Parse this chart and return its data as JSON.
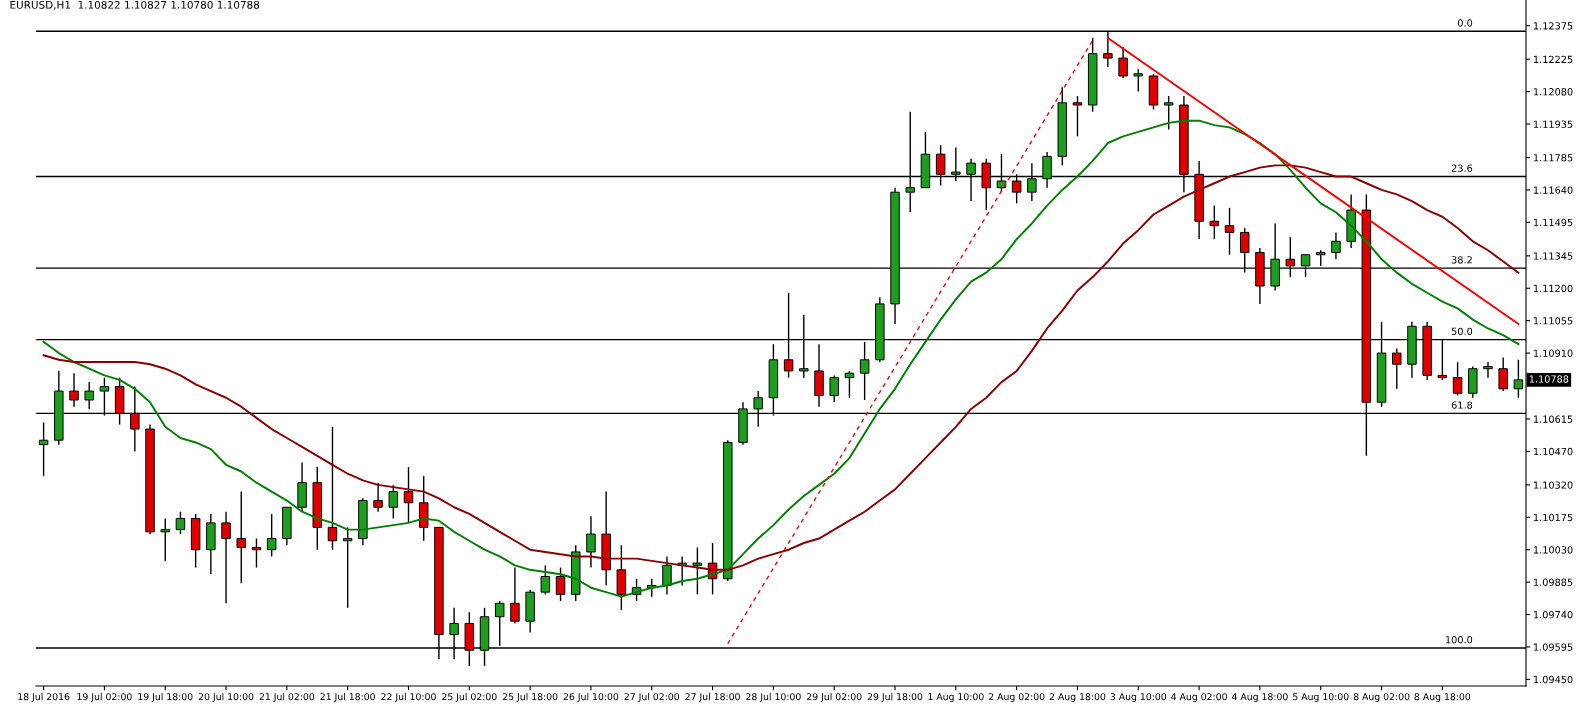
{
  "chart_data": {
    "type": "candlestick",
    "title": "EURUSD,H1  1.10822 1.10827 1.10780 1.10788",
    "categories": [
      "18 Jul 2016",
      null,
      null,
      null,
      "19 Jul 02:00",
      null,
      null,
      null,
      "19 Jul 18:00",
      null,
      null,
      null,
      "20 Jul 10:00",
      null,
      null,
      null,
      "21 Jul 02:00",
      null,
      null,
      null,
      "21 Jul 18:00",
      null,
      null,
      null,
      "22 Jul 10:00",
      null,
      null,
      null,
      "25 Jul 02:00",
      null,
      null,
      null,
      "25 Jul 18:00",
      null,
      null,
      null,
      "26 Jul 10:00",
      null,
      null,
      null,
      "27 Jul 02:00",
      null,
      null,
      null,
      "27 Jul 18:00",
      null,
      null,
      null,
      "28 Jul 10:00",
      null,
      null,
      null,
      "29 Jul 02:00",
      null,
      null,
      null,
      "29 Jul 18:00",
      null,
      null,
      null,
      "1 Aug 10:00",
      null,
      null,
      null,
      "2 Aug 02:00",
      null,
      null,
      null,
      "2 Aug 18:00",
      null,
      null,
      null,
      "3 Aug 10:00",
      null,
      null,
      null,
      "4 Aug 02:00",
      null,
      null,
      null,
      "4 Aug 18:00",
      null,
      null,
      null,
      "5 Aug 10:00",
      null,
      null,
      null,
      "8 Aug 02:00",
      null,
      null,
      null,
      "8 Aug 18:00",
      null,
      null,
      null,
      null,
      null
    ],
    "ohlc": [
      [
        1.105,
        1.106,
        1.1036,
        1.1052
      ],
      [
        1.1052,
        1.1083,
        1.105,
        1.1074
      ],
      [
        1.1074,
        1.1082,
        1.1067,
        1.107
      ],
      [
        1.107,
        1.1078,
        1.1066,
        1.1074
      ],
      [
        1.1074,
        1.108,
        1.1063,
        1.1076
      ],
      [
        1.1076,
        1.108,
        1.1059,
        1.1064
      ],
      [
        1.1064,
        1.1076,
        1.1047,
        1.1057
      ],
      [
        1.1057,
        1.1059,
        1.101,
        1.1011
      ],
      [
        1.1011,
        1.1017,
        1.0998,
        1.1012
      ],
      [
        1.1012,
        1.102,
        1.101,
        1.1017
      ],
      [
        1.1017,
        1.1019,
        1.0995,
        1.1003
      ],
      [
        1.1003,
        1.1019,
        1.0992,
        1.1015
      ],
      [
        1.1015,
        1.102,
        1.0979,
        1.1008
      ],
      [
        1.1008,
        1.1029,
        1.0988,
        1.1004
      ],
      [
        1.1004,
        1.1008,
        1.0995,
        1.1003
      ],
      [
        1.1003,
        1.1019,
        1.1,
        1.1008
      ],
      [
        1.1008,
        1.1022,
        1.1005,
        1.1022
      ],
      [
        1.1022,
        1.1042,
        1.102,
        1.1033
      ],
      [
        1.1033,
        1.104,
        1.1003,
        1.1013
      ],
      [
        1.1013,
        1.1058,
        1.1003,
        1.1007
      ],
      [
        1.1007,
        1.1013,
        1.0977,
        1.1008
      ],
      [
        1.1008,
        1.1026,
        1.1005,
        1.1025
      ],
      [
        1.1025,
        1.1033,
        1.102,
        1.1022
      ],
      [
        1.1022,
        1.1032,
        1.1017,
        1.1029
      ],
      [
        1.1029,
        1.104,
        1.1015,
        1.1024
      ],
      [
        1.1024,
        1.1036,
        1.1007,
        1.1013
      ],
      [
        1.1013,
        1.1013,
        1.0954,
        1.0965
      ],
      [
        1.0965,
        1.0977,
        1.0954,
        1.097
      ],
      [
        1.097,
        1.0975,
        1.0951,
        1.0958
      ],
      [
        1.0958,
        1.0977,
        1.0951,
        1.0973
      ],
      [
        1.0973,
        1.098,
        1.096,
        1.0979
      ],
      [
        1.0979,
        1.0995,
        1.097,
        1.0971
      ],
      [
        1.0971,
        1.0985,
        1.0966,
        1.0984
      ],
      [
        1.0984,
        1.0996,
        1.0983,
        1.0991
      ],
      [
        1.0991,
        1.0995,
        1.098,
        1.0983
      ],
      [
        1.0983,
        1.1005,
        1.098,
        1.1002
      ],
      [
        1.1002,
        1.1018,
        1.0995,
        1.101
      ],
      [
        1.101,
        1.1029,
        1.0987,
        1.0994
      ],
      [
        1.0994,
        1.1005,
        1.0976,
        1.0983
      ],
      [
        1.0983,
        1.099,
        1.098,
        1.0986
      ],
      [
        1.0986,
        1.099,
        1.0982,
        1.0987
      ],
      [
        1.0987,
        1.1,
        1.0983,
        1.0996
      ],
      [
        1.0996,
        1.1,
        1.0987,
        1.0997
      ],
      [
        1.0996,
        1.1004,
        1.0983,
        1.0997
      ],
      [
        1.0997,
        1.1006,
        1.0983,
        1.099
      ],
      [
        1.099,
        1.1052,
        1.0989,
        1.1051
      ],
      [
        1.1051,
        1.1069,
        1.105,
        1.1066
      ],
      [
        1.1066,
        1.1074,
        1.1058,
        1.1071
      ],
      [
        1.1071,
        1.1095,
        1.1063,
        1.1088
      ],
      [
        1.1088,
        1.1118,
        1.108,
        1.1083
      ],
      [
        1.1083,
        1.1108,
        1.108,
        1.1084
      ],
      [
        1.1083,
        1.1095,
        1.1067,
        1.1072
      ],
      [
        1.1072,
        1.1081,
        1.1069,
        1.108
      ],
      [
        1.108,
        1.1083,
        1.1071,
        1.1082
      ],
      [
        1.1082,
        1.1096,
        1.107,
        1.1088
      ],
      [
        1.1088,
        1.1116,
        1.1087,
        1.1113
      ],
      [
        1.1113,
        1.1165,
        1.1104,
        1.1163
      ],
      [
        1.1163,
        1.1199,
        1.1154,
        1.1165
      ],
      [
        1.1165,
        1.119,
        1.1165,
        1.118
      ],
      [
        1.118,
        1.1184,
        1.1166,
        1.1171
      ],
      [
        1.1171,
        1.1183,
        1.1168,
        1.1172
      ],
      [
        1.1171,
        1.1178,
        1.1159,
        1.1176
      ],
      [
        1.1176,
        1.1178,
        1.1155,
        1.1165
      ],
      [
        1.1165,
        1.118,
        1.1163,
        1.1168
      ],
      [
        1.1168,
        1.1171,
        1.1158,
        1.1163
      ],
      [
        1.1163,
        1.1176,
        1.1159,
        1.1169
      ],
      [
        1.1169,
        1.1181,
        1.1165,
        1.1179
      ],
      [
        1.1179,
        1.121,
        1.1175,
        1.1203
      ],
      [
        1.1203,
        1.1206,
        1.1188,
        1.1202
      ],
      [
        1.1202,
        1.1232,
        1.1199,
        1.1225
      ],
      [
        1.1225,
        1.1235,
        1.1219,
        1.1223
      ],
      [
        1.1223,
        1.1228,
        1.1214,
        1.1215
      ],
      [
        1.1215,
        1.1218,
        1.1208,
        1.1216
      ],
      [
        1.1215,
        1.1216,
        1.12,
        1.1202
      ],
      [
        1.1202,
        1.1206,
        1.1191,
        1.1203
      ],
      [
        1.1202,
        1.1206,
        1.1163,
        1.1171
      ],
      [
        1.1171,
        1.1177,
        1.1142,
        1.115
      ],
      [
        1.115,
        1.1157,
        1.1142,
        1.1148
      ],
      [
        1.1148,
        1.1156,
        1.1135,
        1.1145
      ],
      [
        1.1145,
        1.1147,
        1.1127,
        1.1136
      ],
      [
        1.1136,
        1.1138,
        1.1113,
        1.1121
      ],
      [
        1.1121,
        1.1149,
        1.1119,
        1.1133
      ],
      [
        1.1133,
        1.1143,
        1.1125,
        1.113
      ],
      [
        1.113,
        1.1135,
        1.1125,
        1.1135
      ],
      [
        1.1135,
        1.1137,
        1.113,
        1.1136
      ],
      [
        1.1136,
        1.1145,
        1.1133,
        1.1141
      ],
      [
        1.1141,
        1.1162,
        1.1138,
        1.1155
      ],
      [
        1.1155,
        1.1162,
        1.1045,
        1.1069
      ],
      [
        1.1069,
        1.1105,
        1.1067,
        1.1091
      ],
      [
        1.1091,
        1.1093,
        1.1075,
        1.1086
      ],
      [
        1.1086,
        1.1105,
        1.108,
        1.1103
      ],
      [
        1.1103,
        1.1105,
        1.1079,
        1.1081
      ],
      [
        1.1081,
        1.1097,
        1.1079,
        1.108
      ],
      [
        1.108,
        1.1087,
        1.1072,
        1.1073
      ],
      [
        1.1073,
        1.1085,
        1.1071,
        1.1084
      ],
      [
        1.1084,
        1.1087,
        1.108,
        1.1085
      ],
      [
        1.1084,
        1.1089,
        1.1074,
        1.1075
      ],
      [
        1.1075,
        1.1088,
        1.1071,
        1.1079
      ]
    ],
    "colors": [
      "#1e9e1e",
      "#1e9e1e",
      "#e00000",
      "#1e9e1e",
      "#1e9e1e",
      "#e00000",
      "#e00000",
      "#e00000",
      "#1e9e1e",
      "#1e9e1e",
      "#e00000",
      "#1e9e1e",
      "#e00000",
      "#e00000",
      "#e00000",
      "#1e9e1e",
      "#1e9e1e",
      "#1e9e1e",
      "#e00000",
      "#e00000",
      "#1e9e1e",
      "#1e9e1e",
      "#e00000",
      "#1e9e1e",
      "#e00000",
      "#e00000",
      "#e00000",
      "#1e9e1e",
      "#e00000",
      "#1e9e1e",
      "#1e9e1e",
      "#e00000",
      "#1e9e1e",
      "#1e9e1e",
      "#e00000",
      "#1e9e1e",
      "#1e9e1e",
      "#e00000",
      "#e00000",
      "#1e9e1e",
      "#1e9e1e",
      "#1e9e1e",
      "#1e9e1e",
      "#1e9e1e",
      "#e00000",
      "#1e9e1e",
      "#1e9e1e",
      "#1e9e1e",
      "#1e9e1e",
      "#e00000",
      "#1e9e1e",
      "#e00000",
      "#1e9e1e",
      "#1e9e1e",
      "#1e9e1e",
      "#1e9e1e",
      "#1e9e1e",
      "#1e9e1e",
      "#1e9e1e",
      "#e00000",
      "#1e9e1e",
      "#1e9e1e",
      "#e00000",
      "#1e9e1e",
      "#e00000",
      "#1e9e1e",
      "#1e9e1e",
      "#1e9e1e",
      "#e00000",
      "#1e9e1e",
      "#e00000",
      "#e00000",
      "#1e9e1e",
      "#e00000",
      "#1e9e1e",
      "#e00000",
      "#e00000",
      "#e00000",
      "#e00000",
      "#e00000",
      "#e00000",
      "#1e9e1e",
      "#e00000",
      "#1e9e1e",
      "#1e9e1e",
      "#1e9e1e",
      "#1e9e1e",
      "#e00000",
      "#1e9e1e",
      "#e00000",
      "#1e9e1e",
      "#e00000",
      "#e00000",
      "#e00000",
      "#1e9e1e",
      "#1e9e1e",
      "#e00000",
      "#1e9e1e"
    ],
    "series": [
      {
        "type": "line",
        "color": "#008000",
        "values": [
          1.1096,
          1.1091,
          1.1087,
          1.1084,
          1.1081,
          1.1079,
          1.1075,
          1.1069,
          1.1058,
          1.1053,
          1.1051,
          1.1048,
          1.1041,
          1.1038,
          1.1033,
          1.1029,
          1.1025,
          1.102,
          1.1017,
          1.1015,
          1.1012,
          1.1012,
          1.1013,
          1.1014,
          1.1015,
          1.1017,
          1.1016,
          1.1011,
          1.1007,
          1.1003,
          1.1,
          1.0996,
          1.0994,
          1.0993,
          1.0992,
          1.099,
          1.0986,
          1.0984,
          1.0982,
          1.0984,
          1.0986,
          1.0987,
          1.0989,
          1.099,
          1.0992,
          1.0994,
          1.1001,
          1.1008,
          1.1014,
          1.1021,
          1.1027,
          1.1032,
          1.1037,
          1.1044,
          1.1055,
          1.1066,
          1.1075,
          1.1086,
          1.1096,
          1.1106,
          1.1115,
          1.1123,
          1.1127,
          1.1133,
          1.1142,
          1.1149,
          1.1157,
          1.1164,
          1.117,
          1.1177,
          1.1185,
          1.1188,
          1.119,
          1.1192,
          1.1194,
          1.1195,
          1.1195,
          1.1193,
          1.1192,
          1.1189,
          1.1185,
          1.118,
          1.1173,
          1.1165,
          1.1158,
          1.1154,
          1.1148,
          1.1141,
          1.1133,
          1.1127,
          1.1122,
          1.1118,
          1.1114,
          1.1111,
          1.1106,
          1.1102,
          1.1099,
          1.1095
        ]
      },
      {
        "type": "line",
        "color": "#8b0000",
        "values": [
          1.109,
          1.1088,
          1.1087,
          1.1087,
          1.1087,
          1.1087,
          1.1087,
          1.1086,
          1.1084,
          1.1081,
          1.1077,
          1.1074,
          1.1071,
          1.1067,
          1.1062,
          1.1057,
          1.1053,
          1.1049,
          1.1045,
          1.1041,
          1.1037,
          1.1034,
          1.1032,
          1.1031,
          1.103,
          1.1029,
          1.1026,
          1.1022,
          1.1019,
          1.1015,
          1.1011,
          1.1007,
          1.1003,
          1.1002,
          1.1001,
          1.1,
          1.1,
          1.0999,
          1.0999,
          1.0999,
          1.0998,
          1.0997,
          1.0996,
          1.0995,
          1.0994,
          1.0994,
          1.0996,
          1.0999,
          1.1001,
          1.1003,
          1.1006,
          1.1008,
          1.1012,
          1.1016,
          1.102,
          1.1025,
          1.103,
          1.1037,
          1.1044,
          1.1051,
          1.1058,
          1.1066,
          1.1071,
          1.1078,
          1.1083,
          1.1092,
          1.1102,
          1.111,
          1.1119,
          1.1125,
          1.1132,
          1.114,
          1.1146,
          1.1153,
          1.1157,
          1.1161,
          1.1164,
          1.1167,
          1.117,
          1.1172,
          1.1174,
          1.1175,
          1.1175,
          1.1174,
          1.1172,
          1.117,
          1.117,
          1.1167,
          1.1164,
          1.1162,
          1.1159,
          1.1155,
          1.1152,
          1.1147,
          1.1141,
          1.1137,
          1.1132,
          1.1127
        ]
      },
      {
        "type": "line",
        "color": "#ff0000",
        "line_style": "dashed",
        "values": [
          null,
          null,
          null,
          null,
          null,
          null,
          null,
          null,
          null,
          null,
          null,
          null,
          null,
          null,
          null,
          null,
          null,
          null,
          null,
          null,
          null,
          null,
          null,
          null,
          null,
          null,
          null,
          null,
          null,
          null,
          null,
          null,
          null,
          null,
          null,
          null,
          null,
          null,
          null,
          null,
          null,
          null,
          null,
          null,
          null,
          1.0961,
          null,
          null,
          null,
          null,
          null,
          null,
          null,
          null,
          null,
          null,
          null,
          null,
          null,
          null,
          null,
          null,
          null,
          null,
          null,
          null,
          null,
          null,
          null,
          1.1231,
          null,
          null,
          null,
          null,
          null,
          null,
          null,
          null,
          null,
          null,
          null,
          null,
          null,
          null,
          null,
          null,
          null,
          null,
          null,
          null,
          null,
          null,
          null,
          null,
          null,
          null,
          null,
          null
        ]
      },
      {
        "type": "line",
        "color": "#ff0000",
        "values": [
          null,
          null,
          null,
          null,
          null,
          null,
          null,
          null,
          null,
          null,
          null,
          null,
          null,
          null,
          null,
          null,
          null,
          null,
          null,
          null,
          null,
          null,
          null,
          null,
          null,
          null,
          null,
          null,
          null,
          null,
          null,
          null,
          null,
          null,
          null,
          null,
          null,
          null,
          null,
          null,
          null,
          null,
          null,
          null,
          null,
          null,
          null,
          null,
          null,
          null,
          null,
          null,
          null,
          null,
          null,
          null,
          null,
          null,
          null,
          null,
          null,
          null,
          null,
          null,
          null,
          null,
          null,
          null,
          null,
          null,
          1.1232,
          null,
          null,
          null,
          null,
          null,
          null,
          null,
          null,
          null,
          null,
          null,
          null,
          null,
          null,
          null,
          null,
          null,
          null,
          null,
          null,
          null,
          null,
          null,
          null,
          null,
          null,
          1.1104
        ]
      }
    ],
    "ref_lines": [
      {
        "axis": "y",
        "value": 1.1235,
        "color": "#000000"
      },
      {
        "axis": "y",
        "value": 1.117,
        "color": "#000000"
      },
      {
        "axis": "y",
        "value": 1.1129,
        "color": "#000000"
      },
      {
        "axis": "y",
        "value": 1.1097,
        "color": "#000000"
      },
      {
        "axis": "y",
        "value": 1.1064,
        "color": "#000000"
      },
      {
        "axis": "y",
        "value": 1.0959,
        "color": "#000000"
      }
    ],
    "annotations": [
      {
        "text": "0.0",
        "y": 1.1235
      },
      {
        "text": "23.6",
        "y": 1.117
      },
      {
        "text": "38.2",
        "y": 1.1129
      },
      {
        "text": "50.0",
        "y": 1.1097
      },
      {
        "text": "61.8",
        "y": 1.1064
      },
      {
        "text": "100.0",
        "y": 1.0959
      },
      "1.10788"
    ],
    "ylim": [
      1.0942,
      1.1249
    ],
    "yticks": [
      {
        "value": 1.0945,
        "label": "1.09450"
      },
      1.09595,
      {
        "value": 1.0974,
        "label": "1.09740"
      },
      1.09885,
      {
        "value": 1.1003,
        "label": "1.10030"
      },
      1.10175,
      {
        "value": 1.1032,
        "label": "1.10320"
      },
      {
        "value": 1.1047,
        "label": "1.10470"
      },
      1.10615,
      {
        "value": 1.1091,
        "label": "1.10910"
      },
      1.11055,
      {
        "value": 1.112,
        "label": "1.11200"
      },
      1.11345,
      1.11495,
      {
        "value": 1.1164,
        "label": "1.11640"
      },
      1.11785,
      1.11935,
      {
        "value": 1.1208,
        "label": "1.12080"
      },
      1.12225,
      1.12375
    ],
    "grid": false,
    "legend": false
  }
}
